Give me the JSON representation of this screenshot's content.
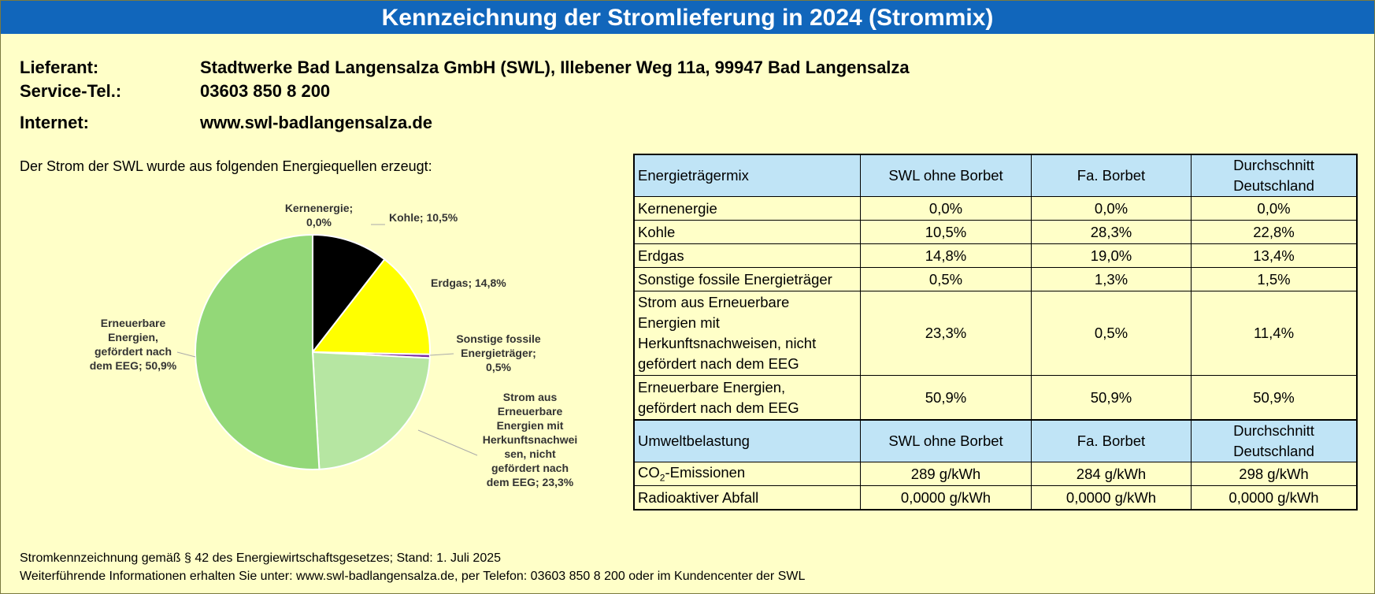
{
  "banner": {
    "title": "Kennzeichnung der Stromlieferung in 2024 (Strommix)"
  },
  "info": {
    "supplier_label": "Lieferant:",
    "supplier_value": "Stadtwerke Bad Langensalza GmbH (SWL), Illebener Weg 11a, 99947 Bad Langensalza",
    "phone_label": "Service-Tel.:",
    "phone_value": "03603 850 8 200",
    "internet_label": "Internet:",
    "internet_value": "www.swl-badlangensalza.de"
  },
  "intro": "Der Strom der SWL wurde aus folgenden Energiequellen erzeugt:",
  "chart_data": {
    "type": "pie",
    "slices": [
      {
        "label": [
          "Kernenergie;",
          "0,0%"
        ],
        "value": 0.0,
        "color": "#000000"
      },
      {
        "label": [
          "Kohle; 10,5%"
        ],
        "value": 10.5,
        "color": "#000000"
      },
      {
        "label": [
          "Erdgas; 14,8%"
        ],
        "value": 14.8,
        "color": "#ffff00"
      },
      {
        "label": [
          "Sonstige fossile",
          "Energieträger;",
          "0,5%"
        ],
        "value": 0.5,
        "color": "#7a2aa0"
      },
      {
        "label": [
          "Strom aus",
          "Erneuerbare",
          "Energien mit",
          "Herkunftsnachwei",
          "sen, nicht",
          "gefördert nach",
          "dem EEG; 23,3%"
        ],
        "value": 23.3,
        "color": "#b6e6a2"
      },
      {
        "label": [
          "Erneuerbare",
          "Energien,",
          "gefördert nach",
          "dem EEG; 50,9%"
        ],
        "value": 50.9,
        "color": "#93d878"
      }
    ]
  },
  "table_mix": {
    "headers": [
      "Energieträgermix",
      "SWL ohne Borbet",
      "Fa. Borbet",
      [
        "Durchschnitt",
        "Deutschland"
      ]
    ],
    "rows": [
      {
        "label": [
          "Kernenergie"
        ],
        "values": [
          "0,0%",
          "0,0%",
          "0,0%"
        ]
      },
      {
        "label": [
          "Kohle"
        ],
        "values": [
          "10,5%",
          "28,3%",
          "22,8%"
        ]
      },
      {
        "label": [
          "Erdgas"
        ],
        "values": [
          "14,8%",
          "19,0%",
          "13,4%"
        ]
      },
      {
        "label": [
          "Sonstige fossile Energieträger"
        ],
        "values": [
          "0,5%",
          "1,3%",
          "1,5%"
        ]
      },
      {
        "label": [
          "Strom aus Erneuerbare",
          "Energien mit",
          "Herkunftsnachweisen, nicht",
          "gefördert nach dem EEG"
        ],
        "values": [
          "23,3%",
          "0,5%",
          "11,4%"
        ]
      },
      {
        "label": [
          "Erneuerbare Energien,",
          "gefördert nach dem EEG"
        ],
        "values": [
          "50,9%",
          "50,9%",
          "50,9%"
        ]
      }
    ]
  },
  "table_env": {
    "headers": [
      "Umweltbelastung",
      "SWL ohne Borbet",
      "Fa. Borbet",
      [
        "Durchschnitt",
        "Deutschland"
      ]
    ],
    "co2": {
      "prefix": "CO",
      "sub": "2",
      "suffix": "-Emissionen",
      "values": [
        "289 g/kWh",
        "284 g/kWh",
        "298 g/kWh"
      ]
    },
    "waste": {
      "label": "Radioaktiver Abfall",
      "values": [
        "0,0000 g/kWh",
        "0,0000 g/kWh",
        "0,0000 g/kWh"
      ]
    }
  },
  "footer": {
    "line1": "Stromkennzeichnung gemäß § 42 des Energiewirtschaftsgesetzes; Stand: 1. Juli 2025",
    "line2": "Weiterführende Informationen erhalten Sie unter: www.swl-badlangensalza.de, per Telefon: 03603 850 8 200 oder im Kundencenter der SWL"
  }
}
